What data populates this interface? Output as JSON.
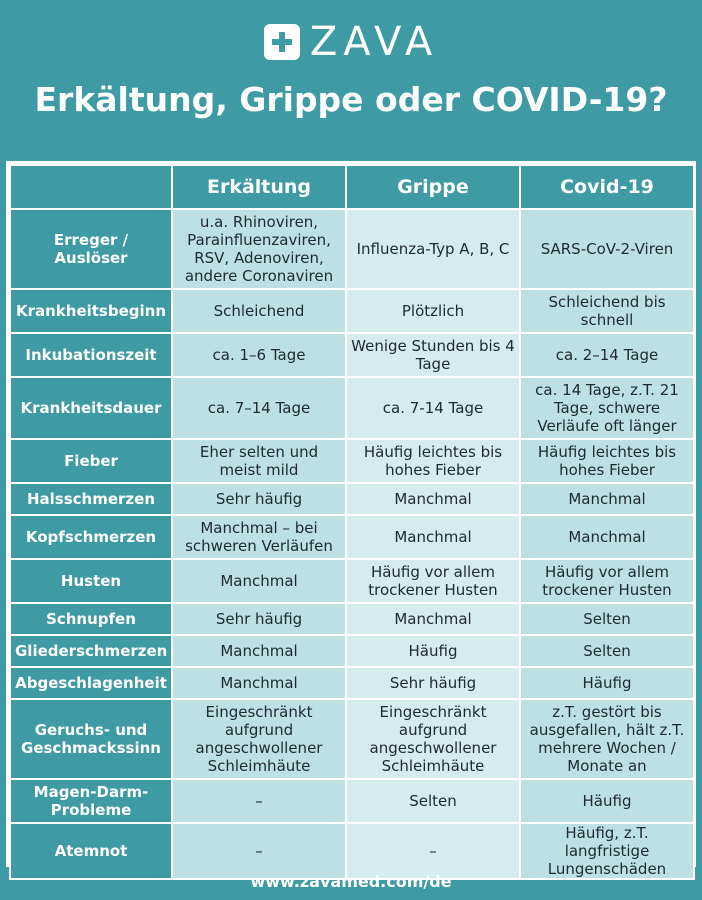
{
  "brand": {
    "name": "ZAVA",
    "icon": "medical-cross-icon"
  },
  "title": "Erkältung, Grippe oder COVID-19?",
  "columns": [
    "Erkältung",
    "Grippe",
    "Covid-19"
  ],
  "rows": [
    {
      "label": "Erreger / Auslöser",
      "values": [
        "u.a. Rhinoviren, Parainfluenzaviren, RSV, Adenoviren, andere Coronaviren",
        "Influenza-Typ A, B, C",
        "SARS-CoV-2-Viren"
      ]
    },
    {
      "label": "Krankheitsbeginn",
      "values": [
        "Schleichend",
        "Plötzlich",
        "Schleichend bis schnell"
      ]
    },
    {
      "label": "Inkubationszeit",
      "values": [
        "ca. 1–6 Tage",
        "Wenige Stunden bis 4 Tage",
        "ca. 2–14 Tage"
      ]
    },
    {
      "label": "Krankheitsdauer",
      "values": [
        "ca. 7–14 Tage",
        "ca. 7-14 Tage",
        "ca. 14 Tage, z.T. 21 Tage, schwere Verläufe oft länger"
      ]
    },
    {
      "label": "Fieber",
      "values": [
        "Eher selten und meist mild",
        "Häufig leichtes bis hohes Fieber",
        "Häufig leichtes bis hohes Fieber"
      ]
    },
    {
      "label": "Halsschmerzen",
      "values": [
        "Sehr häufig",
        "Manchmal",
        "Manchmal"
      ]
    },
    {
      "label": "Kopfschmerzen",
      "values": [
        "Manchmal – bei schweren Verläufen",
        "Manchmal",
        "Manchmal"
      ]
    },
    {
      "label": "Husten",
      "values": [
        "Manchmal",
        "Häufig vor allem trockener Husten",
        "Häufig vor allem trockener Husten"
      ]
    },
    {
      "label": "Schnupfen",
      "values": [
        "Sehr häufig",
        "Manchmal",
        "Selten"
      ]
    },
    {
      "label": "Gliederschmerzen",
      "values": [
        "Manchmal",
        "Häufig",
        "Selten"
      ]
    },
    {
      "label": "Abgeschlagenheit",
      "values": [
        "Manchmal",
        "Sehr häufig",
        "Häufig"
      ]
    },
    {
      "label": "Geruchs- und Geschmackssinn",
      "values": [
        "Eingeschränkt aufgrund angeschwollener Schleimhäute",
        "Eingeschränkt aufgrund angeschwollener Schleimhäute",
        "z.T. gestört bis ausgefallen, hält z.T. mehrere Wochen / Monate an"
      ]
    },
    {
      "label": "Magen-Darm-Probleme",
      "values": [
        "–",
        "Selten",
        "Häufig"
      ]
    },
    {
      "label": "Atemnot",
      "values": [
        "–",
        "–",
        "Häufig, z.T. langfristige Lungenschäden"
      ]
    }
  ],
  "footer": "www.zavamed.com/de",
  "colors": {
    "background": "#3e9aa3",
    "header": "#3e9aa3",
    "cell_dark": "#bde0e3",
    "cell_light": "#d5ecee"
  }
}
